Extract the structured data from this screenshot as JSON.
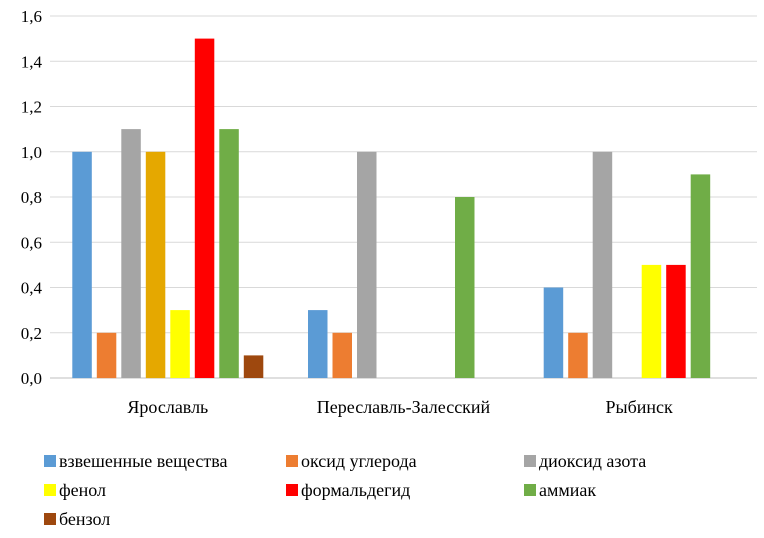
{
  "chart_data": {
    "type": "bar",
    "categories": [
      "Ярославль",
      "Переславль-Залесский",
      "Рыбинск"
    ],
    "ylim": [
      0,
      1.6
    ],
    "yticks": [
      "0,0",
      "0,2",
      "0,4",
      "0,6",
      "0,8",
      "1,0",
      "1,2",
      "1,4",
      "1,6"
    ],
    "grid": true,
    "legend_position": "bottom",
    "series": [
      {
        "name": "взвешенные вещества",
        "color": "#5B9BD5",
        "values": [
          1.0,
          0.3,
          0.4
        ]
      },
      {
        "name": "оксид углерода",
        "color": "#ED7D31",
        "values": [
          0.2,
          0.2,
          0.2
        ]
      },
      {
        "name": "диоксид азота",
        "color": "#A5A5A5",
        "values": [
          1.1,
          1.0,
          1.0
        ]
      },
      {
        "name": "",
        "color": "#E5A800",
        "values": [
          1.0,
          null,
          null
        ]
      },
      {
        "name": "фенол",
        "color": "#FFFF00",
        "values": [
          0.3,
          null,
          0.5
        ]
      },
      {
        "name": "формальдегид",
        "color": "#FF0000",
        "values": [
          1.5,
          null,
          0.5
        ]
      },
      {
        "name": "аммиак",
        "color": "#70AD47",
        "values": [
          1.1,
          0.8,
          0.9
        ]
      },
      {
        "name": "бензол",
        "color": "#9E480E",
        "values": [
          0.1,
          null,
          null
        ]
      }
    ]
  }
}
